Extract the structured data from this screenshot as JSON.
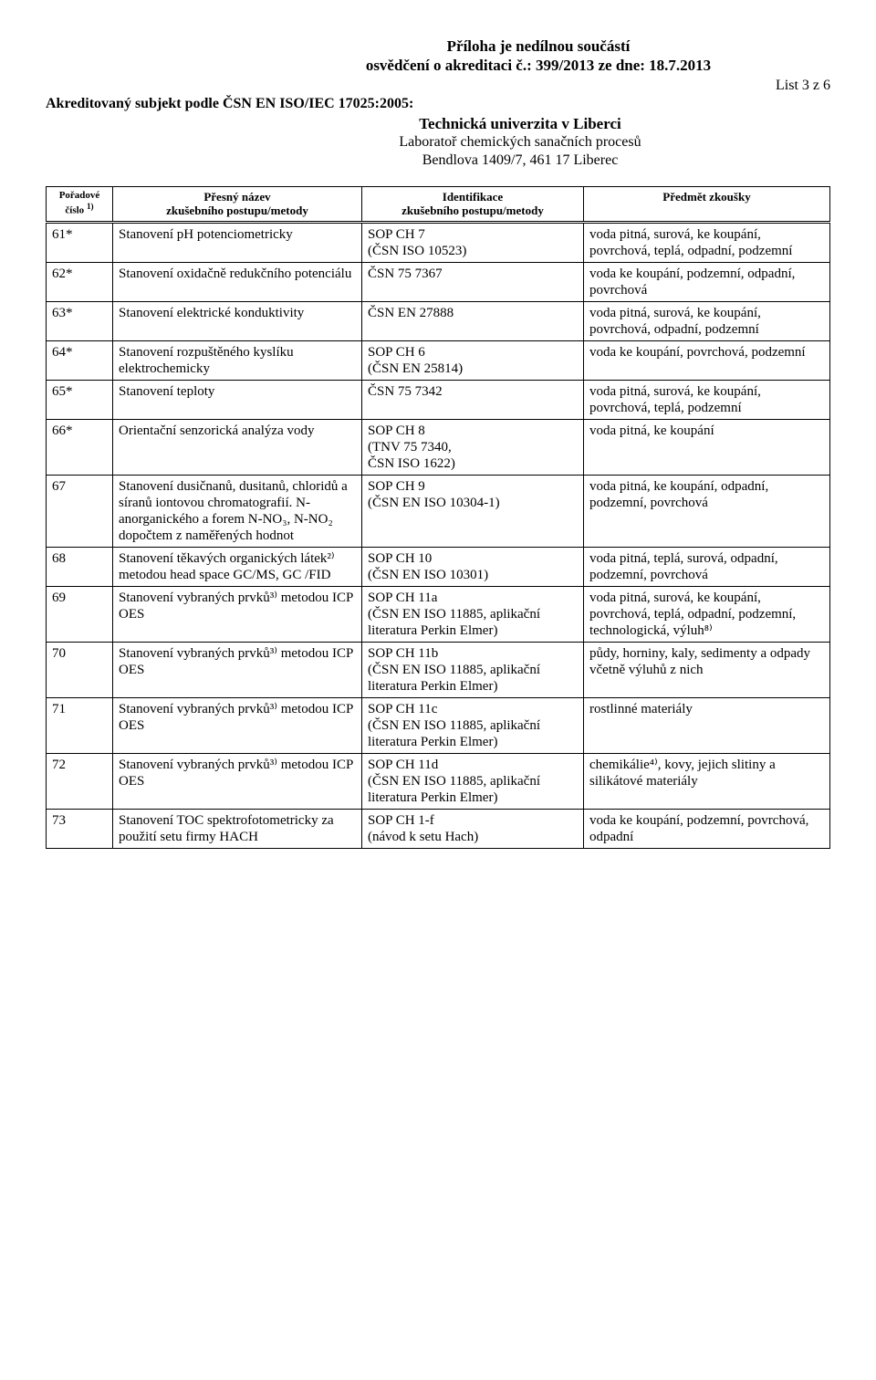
{
  "header": {
    "line1": "Příloha je nedílnou součástí",
    "line2": "osvědčení o akreditaci č.: 399/2013 ze dne: 18.7.2013",
    "listline": "List 3 z 6",
    "subject": "Akreditovaný subjekt podle ČSN EN ISO/IEC 17025:2005:",
    "uni_bold": "Technická univerzita v Liberci",
    "uni_line2": "Laboratoř chemických sanačních procesů",
    "uni_line3": "Bendlova 1409/7, 461 17  Liberec"
  },
  "columns": {
    "c0a": "Pořadové",
    "c0b": "číslo",
    "c0sup": "1)",
    "c1a": "Přesný název",
    "c1b": "zkušebního postupu/metody",
    "c2a": "Identifikace",
    "c2b": "zkušebního postupu/metody",
    "c3": "Předmět zkoušky"
  },
  "rows": [
    {
      "n": "61*",
      "name": "Stanovení pH potenciometricky",
      "id": "SOP CH 7\n(ČSN ISO 10523)",
      "subj": "voda pitná, surová, ke koupání, povrchová, teplá, odpadní, podzemní"
    },
    {
      "n": "62*",
      "name": "Stanovení oxidačně redukčního potenciálu",
      "id": "ČSN 75 7367",
      "subj": "voda ke koupání, podzemní, odpadní, povrchová"
    },
    {
      "n": "63*",
      "name": "Stanovení elektrické konduktivity",
      "id": "ČSN EN 27888",
      "subj": "voda pitná, surová, ke koupání, povrchová, odpadní, podzemní"
    },
    {
      "n": "64*",
      "name": "Stanovení rozpuštěného kyslíku elektrochemicky",
      "id": "SOP CH 6\n(ČSN EN 25814)",
      "subj": "voda ke koupání, povrchová, podzemní"
    },
    {
      "n": "65*",
      "name": "Stanovení teploty",
      "id": "ČSN 75 7342",
      "subj": "voda pitná, surová, ke koupání,\npovrchová, teplá, podzemní"
    },
    {
      "n": "66*",
      "name": "Orientační senzorická analýza vody",
      "id": "SOP CH 8\n(TNV 75 7340,\nČSN ISO 1622)",
      "subj": "voda pitná, ke koupání"
    },
    {
      "n": "67",
      "name": "Stanovení dusičnanů, dusitanů, chloridů a síranů iontovou chromatografií. N-anorganického a forem N-NO₃, N-NO₂ dopočtem z naměřených hodnot",
      "id": "SOP CH 9\n(ČSN EN ISO 10304-1)",
      "subj": "voda pitná, ke koupání, odpadní, podzemní, povrchová"
    },
    {
      "n": "68",
      "name": "Stanovení těkavých organických látek²⁾ metodou head space GC/MS, GC /FID",
      "id": "SOP CH 10\n(ČSN EN ISO 10301)",
      "subj": "voda pitná, teplá, surová, odpadní, podzemní, povrchová"
    },
    {
      "n": "69",
      "name": "Stanovení vybraných prvků³⁾ metodou ICP OES",
      "id": "SOP CH 11a\n(ČSN EN ISO 11885, aplikační literatura Perkin Elmer)",
      "subj": "voda pitná, surová, ke koupání, povrchová, teplá, odpadní, podzemní, technologická, výluh⁸⁾"
    },
    {
      "n": "70",
      "name": "Stanovení vybraných prvků³⁾ metodou ICP OES",
      "id": "SOP CH 11b\n(ČSN EN ISO 11885, aplikační literatura Perkin Elmer)",
      "subj": "půdy, horniny, kaly, sedimenty a odpady včetně výluhů z nich"
    },
    {
      "n": "71",
      "name": "Stanovení vybraných prvků³⁾ metodou ICP OES",
      "id": "SOP CH 11c\n(ČSN EN ISO 11885, aplikační literatura Perkin Elmer)",
      "subj": "rostlinné materiály"
    },
    {
      "n": "72",
      "name": "Stanovení vybraných prvků³⁾ metodou ICP OES",
      "id": "SOP CH 11d\n(ČSN EN ISO 11885, aplikační literatura Perkin Elmer)",
      "subj": "chemikálie⁴⁾, kovy, jejich slitiny a silikátové materiály"
    },
    {
      "n": "73",
      "name": "Stanovení TOC spektrofotometricky za použití setu firmy HACH",
      "id": "SOP CH 1-f\n(návod k setu Hach)",
      "subj": "voda ke koupání, podzemní, povrchová, odpadní"
    }
  ]
}
